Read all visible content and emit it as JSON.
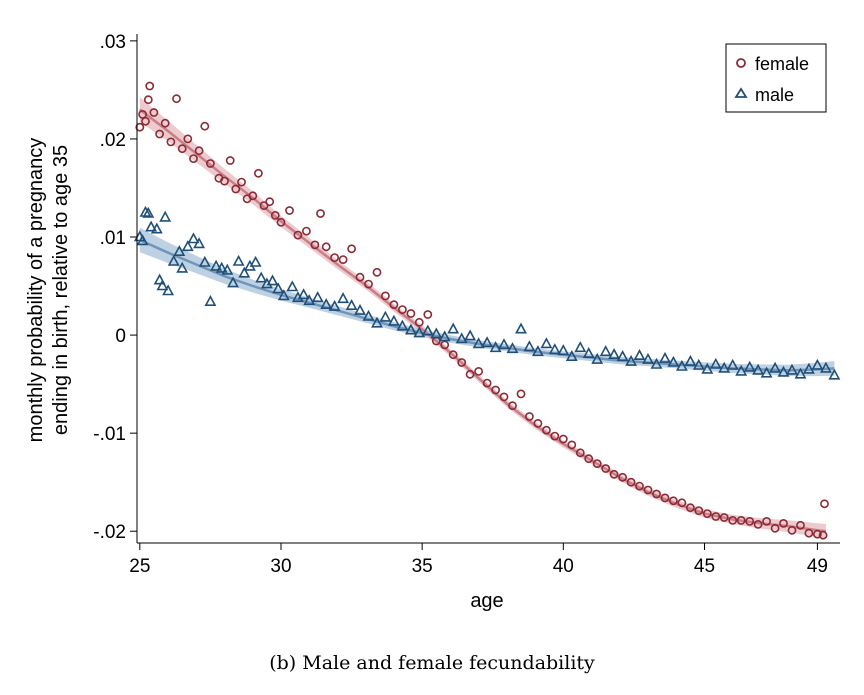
{
  "caption": "(b) Male and female fecundability",
  "chart_data": {
    "type": "scatter",
    "title": "",
    "xlabel": "age",
    "ylabel": [
      "monthly probability of a pregnancy",
      "ending in birth, relative to age 35"
    ],
    "xlim": [
      24.9,
      49.8
    ],
    "ylim": [
      -0.0212,
      0.0307
    ],
    "x_ticks": [
      25,
      30,
      35,
      40,
      45,
      49
    ],
    "y_ticks": [
      0.03,
      0.02,
      0.01,
      0,
      -0.01,
      -0.02
    ],
    "y_tick_labels": [
      ".03",
      ".02",
      ".01",
      "0",
      "-.01",
      "-.02"
    ],
    "grid": false,
    "legend_position": "top-right",
    "series": [
      {
        "name": "female",
        "marker": "circle",
        "color": "#8b2a35",
        "fit_color": "#c97d86",
        "band_color": "#e6b8bd",
        "points": [
          [
            25.0,
            0.0212
          ],
          [
            25.1,
            0.0225
          ],
          [
            25.2,
            0.0218
          ],
          [
            25.3,
            0.024
          ],
          [
            25.35,
            0.0254
          ],
          [
            25.5,
            0.0227
          ],
          [
            25.7,
            0.0205
          ],
          [
            25.9,
            0.0216
          ],
          [
            26.1,
            0.0197
          ],
          [
            26.3,
            0.0241
          ],
          [
            26.5,
            0.019
          ],
          [
            26.7,
            0.02
          ],
          [
            26.9,
            0.018
          ],
          [
            27.1,
            0.0188
          ],
          [
            27.3,
            0.0213
          ],
          [
            27.5,
            0.0175
          ],
          [
            27.8,
            0.016
          ],
          [
            28.0,
            0.0157
          ],
          [
            28.2,
            0.0178
          ],
          [
            28.4,
            0.0149
          ],
          [
            28.6,
            0.0156
          ],
          [
            28.8,
            0.0139
          ],
          [
            29.0,
            0.0142
          ],
          [
            29.2,
            0.0165
          ],
          [
            29.4,
            0.0132
          ],
          [
            29.6,
            0.0136
          ],
          [
            29.8,
            0.0122
          ],
          [
            30.0,
            0.0115
          ],
          [
            30.3,
            0.0127
          ],
          [
            30.6,
            0.0102
          ],
          [
            30.9,
            0.0106
          ],
          [
            31.2,
            0.0092
          ],
          [
            31.4,
            0.0124
          ],
          [
            31.6,
            0.009
          ],
          [
            31.9,
            0.0079
          ],
          [
            32.2,
            0.0077
          ],
          [
            32.5,
            0.0088
          ],
          [
            32.8,
            0.0059
          ],
          [
            33.1,
            0.0052
          ],
          [
            33.4,
            0.0064
          ],
          [
            33.7,
            0.004
          ],
          [
            34.0,
            0.0031
          ],
          [
            34.3,
            0.0026
          ],
          [
            34.6,
            0.0022
          ],
          [
            34.9,
            0.0013
          ],
          [
            35.2,
            0.0021
          ],
          [
            35.5,
            -0.0006
          ],
          [
            35.8,
            -0.001
          ],
          [
            36.1,
            -0.002
          ],
          [
            36.4,
            -0.0028
          ],
          [
            36.7,
            -0.004
          ],
          [
            37.0,
            -0.0037
          ],
          [
            37.3,
            -0.0049
          ],
          [
            37.6,
            -0.0056
          ],
          [
            37.9,
            -0.0063
          ],
          [
            38.2,
            -0.0072
          ],
          [
            38.5,
            -0.006
          ],
          [
            38.8,
            -0.0083
          ],
          [
            39.1,
            -0.009
          ],
          [
            39.4,
            -0.0097
          ],
          [
            39.7,
            -0.0103
          ],
          [
            40.0,
            -0.0106
          ],
          [
            40.3,
            -0.0112
          ],
          [
            40.6,
            -0.012
          ],
          [
            40.9,
            -0.0126
          ],
          [
            41.2,
            -0.0131
          ],
          [
            41.5,
            -0.0136
          ],
          [
            41.8,
            -0.0142
          ],
          [
            42.1,
            -0.0145
          ],
          [
            42.4,
            -0.015
          ],
          [
            42.7,
            -0.0154
          ],
          [
            43.0,
            -0.0158
          ],
          [
            43.3,
            -0.0162
          ],
          [
            43.6,
            -0.0166
          ],
          [
            43.9,
            -0.0169
          ],
          [
            44.2,
            -0.0171
          ],
          [
            44.5,
            -0.0176
          ],
          [
            44.8,
            -0.0179
          ],
          [
            45.1,
            -0.0182
          ],
          [
            45.4,
            -0.0185
          ],
          [
            45.7,
            -0.0186
          ],
          [
            46.0,
            -0.0189
          ],
          [
            46.3,
            -0.0189
          ],
          [
            46.6,
            -0.019
          ],
          [
            46.9,
            -0.0193
          ],
          [
            47.2,
            -0.019
          ],
          [
            47.5,
            -0.0197
          ],
          [
            47.8,
            -0.0192
          ],
          [
            48.1,
            -0.0199
          ],
          [
            48.4,
            -0.0194
          ],
          [
            48.7,
            -0.0202
          ],
          [
            49.0,
            -0.0203
          ],
          [
            49.2,
            -0.0204
          ],
          [
            49.25,
            -0.0172
          ]
        ],
        "fit": [
          [
            25.0,
            0.023
          ],
          [
            26.0,
            0.0208
          ],
          [
            27.0,
            0.0185
          ],
          [
            28.0,
            0.0162
          ],
          [
            29.0,
            0.014
          ],
          [
            30.0,
            0.0116
          ],
          [
            31.0,
            0.0094
          ],
          [
            32.0,
            0.0072
          ],
          [
            33.0,
            0.0051
          ],
          [
            34.0,
            0.0028
          ],
          [
            35.0,
            0.0006
          ],
          [
            36.0,
            -0.0018
          ],
          [
            37.0,
            -0.0044
          ],
          [
            38.0,
            -0.007
          ],
          [
            39.0,
            -0.0092
          ],
          [
            40.0,
            -0.0111
          ],
          [
            41.0,
            -0.0128
          ],
          [
            42.0,
            -0.0145
          ],
          [
            43.0,
            -0.016
          ],
          [
            44.0,
            -0.0172
          ],
          [
            45.0,
            -0.0182
          ],
          [
            46.0,
            -0.0188
          ],
          [
            47.0,
            -0.0192
          ],
          [
            48.0,
            -0.0195
          ],
          [
            49.0,
            -0.0199
          ],
          [
            49.3,
            -0.02
          ]
        ]
      },
      {
        "name": "male",
        "marker": "triangle",
        "color": "#1f4f78",
        "fit_color": "#6f95b8",
        "band_color": "#a8c1d8",
        "points": [
          [
            25.0,
            0.01
          ],
          [
            25.1,
            0.0096
          ],
          [
            25.2,
            0.0125
          ],
          [
            25.3,
            0.0124
          ],
          [
            25.4,
            0.011
          ],
          [
            25.6,
            0.0108
          ],
          [
            25.7,
            0.0056
          ],
          [
            25.8,
            0.005
          ],
          [
            25.9,
            0.012
          ],
          [
            26.0,
            0.0045
          ],
          [
            26.2,
            0.0075
          ],
          [
            26.4,
            0.0085
          ],
          [
            26.5,
            0.0068
          ],
          [
            26.7,
            0.009
          ],
          [
            26.9,
            0.0098
          ],
          [
            27.1,
            0.0093
          ],
          [
            27.3,
            0.0074
          ],
          [
            27.5,
            0.0034
          ],
          [
            27.7,
            0.007
          ],
          [
            27.9,
            0.0068
          ],
          [
            28.1,
            0.0066
          ],
          [
            28.3,
            0.0053
          ],
          [
            28.5,
            0.0075
          ],
          [
            28.7,
            0.0063
          ],
          [
            28.9,
            0.007
          ],
          [
            29.1,
            0.0074
          ],
          [
            29.3,
            0.0058
          ],
          [
            29.5,
            0.0052
          ],
          [
            29.7,
            0.0055
          ],
          [
            29.9,
            0.0047
          ],
          [
            30.1,
            0.004
          ],
          [
            30.4,
            0.0049
          ],
          [
            30.6,
            0.0038
          ],
          [
            30.8,
            0.0041
          ],
          [
            31.0,
            0.0035
          ],
          [
            31.3,
            0.0038
          ],
          [
            31.6,
            0.0031
          ],
          [
            31.9,
            0.0029
          ],
          [
            32.2,
            0.0037
          ],
          [
            32.5,
            0.003
          ],
          [
            32.8,
            0.0025
          ],
          [
            33.1,
            0.0019
          ],
          [
            33.4,
            0.0012
          ],
          [
            33.7,
            0.0018
          ],
          [
            34.0,
            0.0014
          ],
          [
            34.3,
            0.0009
          ],
          [
            34.6,
            0.0005
          ],
          [
            34.9,
            0.0002
          ],
          [
            35.2,
            0.0004
          ],
          [
            35.5,
            0.0001
          ],
          [
            35.8,
            -0.0002
          ],
          [
            36.1,
            0.0006
          ],
          [
            36.4,
            -0.0004
          ],
          [
            36.7,
            -0.0001
          ],
          [
            37.0,
            -0.0009
          ],
          [
            37.3,
            -0.0008
          ],
          [
            37.6,
            -0.0013
          ],
          [
            37.9,
            -0.001
          ],
          [
            38.2,
            -0.0014
          ],
          [
            38.5,
            0.0006
          ],
          [
            38.8,
            -0.0012
          ],
          [
            39.1,
            -0.0017
          ],
          [
            39.4,
            -0.0009
          ],
          [
            39.7,
            -0.0015
          ],
          [
            40.0,
            -0.0016
          ],
          [
            40.3,
            -0.0022
          ],
          [
            40.6,
            -0.0013
          ],
          [
            40.9,
            -0.0019
          ],
          [
            41.2,
            -0.0025
          ],
          [
            41.5,
            -0.0017
          ],
          [
            41.8,
            -0.002
          ],
          [
            42.1,
            -0.0022
          ],
          [
            42.4,
            -0.0027
          ],
          [
            42.7,
            -0.0021
          ],
          [
            43.0,
            -0.0025
          ],
          [
            43.3,
            -0.003
          ],
          [
            43.6,
            -0.0024
          ],
          [
            43.9,
            -0.0028
          ],
          [
            44.2,
            -0.0032
          ],
          [
            44.5,
            -0.0027
          ],
          [
            44.8,
            -0.0031
          ],
          [
            45.1,
            -0.0035
          ],
          [
            45.4,
            -0.003
          ],
          [
            45.7,
            -0.0034
          ],
          [
            46.0,
            -0.0031
          ],
          [
            46.3,
            -0.0037
          ],
          [
            46.6,
            -0.0033
          ],
          [
            46.9,
            -0.0036
          ],
          [
            47.2,
            -0.0039
          ],
          [
            47.5,
            -0.0034
          ],
          [
            47.8,
            -0.0038
          ],
          [
            48.1,
            -0.0036
          ],
          [
            48.4,
            -0.004
          ],
          [
            48.7,
            -0.0035
          ],
          [
            49.0,
            -0.0031
          ],
          [
            49.3,
            -0.0034
          ],
          [
            49.6,
            -0.0041
          ]
        ],
        "fit": [
          [
            25.0,
            0.0097
          ],
          [
            26.0,
            0.0084
          ],
          [
            27.0,
            0.0072
          ],
          [
            28.0,
            0.006
          ],
          [
            29.0,
            0.005
          ],
          [
            30.0,
            0.0041
          ],
          [
            31.0,
            0.0033
          ],
          [
            32.0,
            0.0025
          ],
          [
            33.0,
            0.0017
          ],
          [
            34.0,
            0.0009
          ],
          [
            35.0,
            0.0002
          ],
          [
            36.0,
            -0.0004
          ],
          [
            37.0,
            -0.0009
          ],
          [
            38.0,
            -0.0013
          ],
          [
            39.0,
            -0.0017
          ],
          [
            40.0,
            -0.002
          ],
          [
            41.0,
            -0.0023
          ],
          [
            42.0,
            -0.0026
          ],
          [
            43.0,
            -0.0028
          ],
          [
            44.0,
            -0.003
          ],
          [
            45.0,
            -0.0032
          ],
          [
            46.0,
            -0.0034
          ],
          [
            47.0,
            -0.0035
          ],
          [
            48.0,
            -0.0036
          ],
          [
            49.0,
            -0.0035
          ],
          [
            49.6,
            -0.0034
          ]
        ]
      }
    ]
  }
}
